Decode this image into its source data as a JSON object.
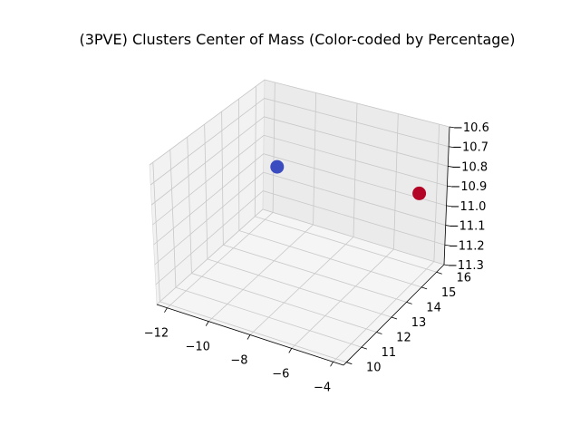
{
  "chart_data": {
    "type": "scatter",
    "projection": "3d",
    "title": "(3PVE) Clusters Center of Mass (Color-coded by Percentage)",
    "xlabel": "",
    "ylabel": "",
    "zlabel": "",
    "xlim": [
      -12.5,
      -3.5
    ],
    "ylim": [
      9.8,
      16.5
    ],
    "zlim": [
      -11.3,
      -10.6
    ],
    "x_ticks": [
      "−12",
      "−10",
      "−8",
      "−6",
      "−4"
    ],
    "y_ticks": [
      "10",
      "11",
      "12",
      "13",
      "14",
      "15",
      "16"
    ],
    "z_ticks": [
      "−11.3",
      "−11.2",
      "−11.1",
      "−11.0",
      "−10.9",
      "−10.8",
      "−10.7",
      "−10.6"
    ],
    "grid": true,
    "colormap": "coolwarm",
    "points": [
      {
        "x": -11.2,
        "y": 15.9,
        "z": -11.0,
        "color": "#3b4cc0"
      },
      {
        "x": -4.3,
        "y": 15.9,
        "z": -10.9,
        "color": "#b40426"
      }
    ]
  }
}
